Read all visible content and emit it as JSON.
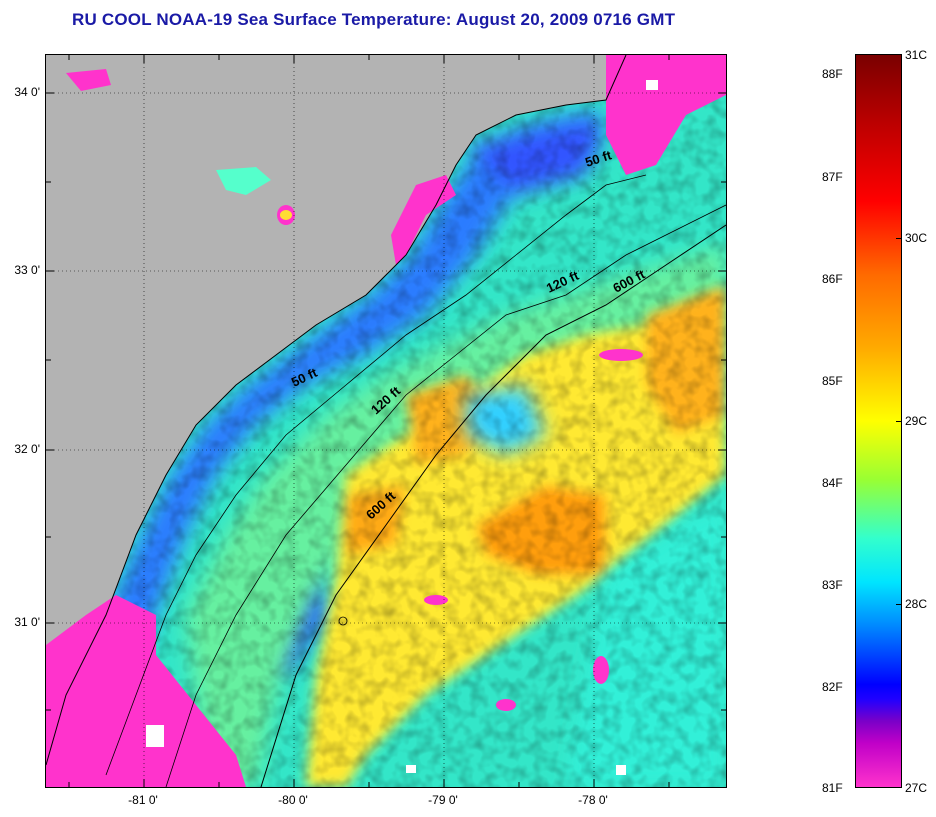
{
  "title": "RU COOL  NOAA-19  Sea Surface Temperature:  August 20, 2009 0716 GMT",
  "map": {
    "latitude_labels": [
      "34 0'",
      "33 0'",
      "32 0'",
      "31 0'"
    ],
    "longitude_labels": [
      "-81 0'",
      "-80 0'",
      "-79 0'",
      "-78 0'"
    ],
    "contour_labels": [
      "50 ft",
      "50 ft",
      "120 ft",
      "120 ft",
      "600 ft",
      "600 ft"
    ],
    "land_color": "#b3b3b3",
    "cloud_color": "#ff33cc"
  },
  "colorbar": {
    "fahrenheit_labels": [
      "88F",
      "87F",
      "86F",
      "85F",
      "84F",
      "83F",
      "82F",
      "81F"
    ],
    "celsius_labels": [
      "31C",
      "30C",
      "29C",
      "28C",
      "27C"
    ],
    "colors": [
      "#7a0000",
      "#ff0000",
      "#ff8c00",
      "#ffff00",
      "#66ff66",
      "#00ffff",
      "#0070ff",
      "#0000ff",
      "#ff33cc"
    ]
  }
}
